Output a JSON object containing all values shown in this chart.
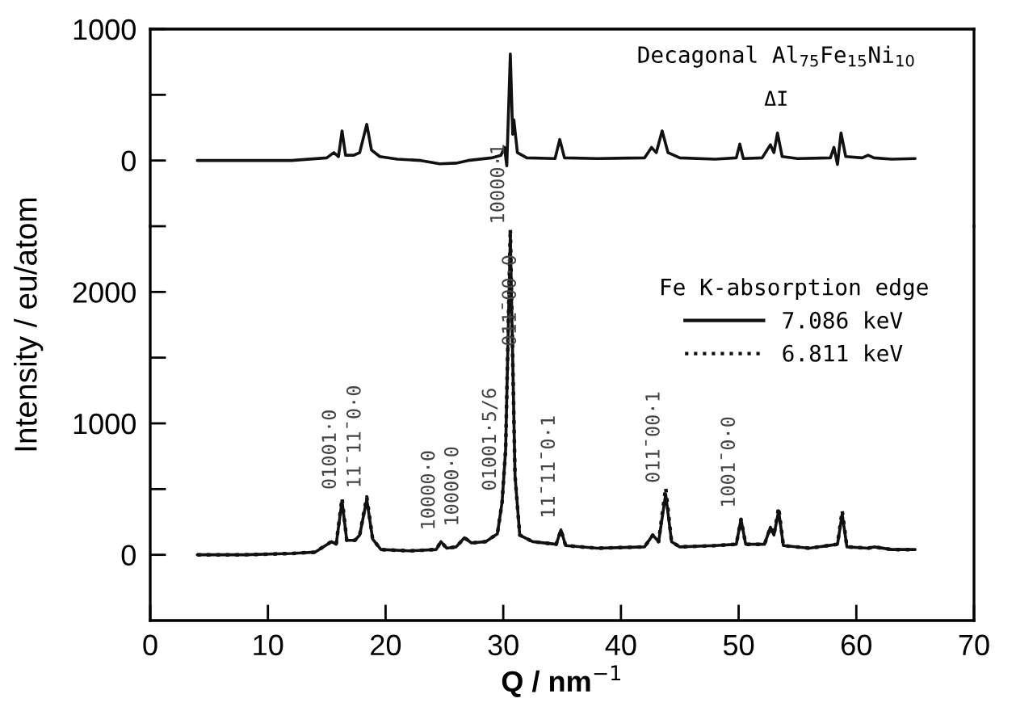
{
  "chart_data": [
    {
      "type": "line",
      "xlim": [
        0,
        70
      ],
      "ylim": [
        -500,
        1000
      ],
      "yticks": [
        {
          "value": -500,
          "label": null
        },
        0,
        {
          "value": 500,
          "label": null
        },
        1000
      ],
      "tick_labels": "y",
      "grid": false,
      "legend": false,
      "marker": "none",
      "annotations": [
        "Decagonal Al$_{75}$Fe$_{15}$Ni$_{10}$",
        "ΔI"
      ],
      "series": [
        {
          "color": "#111111",
          "line_style": "solid",
          "x": [
            4,
            8,
            12,
            15,
            15.6,
            16.0,
            16.3,
            16.6,
            17.3,
            17.8,
            18.4,
            18.8,
            19.5,
            21,
            23,
            24.6,
            26,
            27,
            29,
            29.8,
            30.1,
            30.3,
            30.6,
            30.8,
            30.9,
            31.2,
            32,
            34.4,
            34.8,
            35.2,
            38,
            42,
            42.6,
            43.0,
            43.5,
            44.0,
            45,
            48,
            49.8,
            50.1,
            50.4,
            52,
            52.7,
            53.0,
            53.3,
            53.7,
            55,
            57.8,
            58.1,
            58.4,
            58.7,
            59.1,
            60.5,
            61,
            61.5,
            63,
            65
          ],
          "values": [
            0,
            0,
            0,
            20,
            60,
            30,
            225,
            40,
            40,
            60,
            275,
            80,
            30,
            10,
            0,
            -25,
            -20,
            0,
            20,
            40,
            100,
            -40,
            810,
            200,
            310,
            60,
            20,
            15,
            160,
            20,
            15,
            20,
            100,
            60,
            225,
            60,
            20,
            10,
            20,
            125,
            15,
            20,
            120,
            60,
            210,
            30,
            15,
            20,
            100,
            -30,
            210,
            30,
            20,
            40,
            20,
            10,
            15
          ]
        }
      ]
    },
    {
      "type": "line",
      "xlim": [
        0,
        70
      ],
      "ylim": [
        -500,
        2500
      ],
      "xticks": [
        0,
        10,
        20,
        30,
        40,
        50,
        60,
        70
      ],
      "yticks": [
        0,
        {
          "value": 500,
          "label": null
        },
        1000,
        {
          "value": 1500,
          "label": null
        },
        2000
      ],
      "xlabel": "Q / nm$^{−1}$",
      "ylabel": "Intensity / eu/atom",
      "grid": false,
      "legend": "top right",
      "legend_title": "Fe K-absorption edge",
      "marker": "none",
      "annotations": [
        {
          "text": "01001·0",
          "x": 16.3,
          "y": 410
        },
        {
          "text": "11̄11̄0·0",
          "x": 18.4,
          "y": 420
        },
        {
          "text": "10000·0",
          "x": 24.7,
          "y": 100
        },
        {
          "text": "10000·0",
          "x": 26.7,
          "y": 130
        },
        {
          "text": "01001·5/6",
          "x": 29.9,
          "y": 400
        },
        {
          "text": "10000·1",
          "x": 30.6,
          "y": 2430
        },
        {
          "text": "011̄00·0",
          "x": 31.6,
          "y": 1500
        },
        {
          "text": "11̄11̄0·1",
          "x": 34.9,
          "y": 190
        },
        {
          "text": "011̄00·1",
          "x": 43.8,
          "y": 460
        },
        {
          "text": "1001̄0·0",
          "x": 50.2,
          "y": 270
        }
      ],
      "series": [
        {
          "name": "7.086 keV",
          "color": "#111111",
          "line_style": "solid",
          "x": [
            4,
            8,
            12,
            14,
            15.4,
            15.8,
            16.3,
            16.7,
            17.4,
            17.8,
            18.4,
            18.9,
            19.6,
            22,
            24.3,
            24.7,
            25.2,
            26.0,
            26.7,
            27.3,
            28.5,
            29.5,
            29.9,
            30.2,
            30.6,
            30.8,
            31.0,
            31.4,
            32.5,
            34.5,
            34.9,
            35.3,
            38,
            42,
            42.7,
            43.2,
            43.8,
            44.3,
            45,
            48,
            49.8,
            50.2,
            50.6,
            52.2,
            52.7,
            53.0,
            53.4,
            53.8,
            56,
            58.4,
            58.8,
            59.2,
            61,
            61.5,
            63,
            65
          ],
          "values": [
            0,
            0,
            10,
            20,
            100,
            80,
            410,
            110,
            110,
            150,
            420,
            120,
            40,
            30,
            40,
            100,
            50,
            60,
            130,
            90,
            100,
            160,
            400,
            800,
            2430,
            1500,
            600,
            150,
            100,
            80,
            190,
            70,
            50,
            60,
            150,
            100,
            460,
            100,
            60,
            70,
            80,
            270,
            80,
            80,
            210,
            150,
            335,
            70,
            50,
            80,
            310,
            60,
            50,
            60,
            40,
            40
          ]
        },
        {
          "name": "6.811 keV",
          "color": "#111111",
          "line_style": "dotted",
          "x": [
            4,
            8,
            12,
            14,
            15.4,
            15.8,
            16.3,
            16.7,
            17.4,
            17.8,
            18.4,
            18.9,
            19.6,
            22,
            24.3,
            24.7,
            25.2,
            26.0,
            26.7,
            27.3,
            28.5,
            29.5,
            29.9,
            30.2,
            30.6,
            30.8,
            31.0,
            31.4,
            32.5,
            34.5,
            34.9,
            35.3,
            38,
            42,
            42.7,
            43.2,
            43.8,
            44.3,
            45,
            48,
            49.8,
            50.2,
            50.6,
            52.2,
            52.7,
            53.0,
            53.4,
            53.8,
            56,
            58.4,
            58.8,
            59.2,
            61,
            61.5,
            63,
            65
          ],
          "values": [
            0,
            0,
            10,
            20,
            100,
            80,
            430,
            110,
            110,
            150,
            440,
            120,
            40,
            30,
            40,
            100,
            50,
            60,
            130,
            90,
            100,
            160,
            400,
            800,
            2480,
            1500,
            600,
            150,
            100,
            80,
            190,
            70,
            50,
            60,
            150,
            100,
            510,
            100,
            60,
            70,
            80,
            270,
            80,
            80,
            210,
            150,
            360,
            70,
            50,
            80,
            335,
            60,
            50,
            60,
            40,
            40
          ]
        }
      ]
    }
  ]
}
